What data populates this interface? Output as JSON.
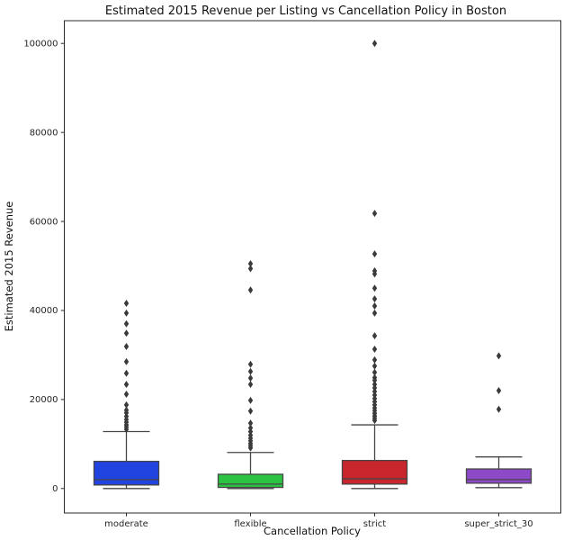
{
  "chart_data": {
    "type": "boxplot",
    "title": "Estimated 2015 Revenue per Listing vs Cancellation Policy in Boston",
    "xlabel": "Cancellation Policy",
    "ylabel": "Estimated 2015 Revenue",
    "categories": [
      "moderate",
      "flexible",
      "strict",
      "super_strict_30"
    ],
    "yticks": [
      0,
      20000,
      40000,
      60000,
      80000,
      100000
    ],
    "ylim": [
      -5500,
      105100
    ],
    "grid": false,
    "legend": "none",
    "style": {
      "edge_color": "#474747",
      "flier_color": "#3a3a3a",
      "spine_color": "#2b2b2b",
      "tick_label_color": "#262626"
    },
    "series": [
      {
        "name": "moderate",
        "color": "#2143e0",
        "whislo": 0,
        "q1": 800,
        "med": 2000,
        "q3": 6100,
        "whishi": 12800,
        "outliers": [
          13300,
          13800,
          14300,
          14900,
          15500,
          16200,
          17000,
          17600,
          18800,
          21200,
          23400,
          25900,
          28500,
          31900,
          34900,
          37000,
          39400,
          41600
        ]
      },
      {
        "name": "flexible",
        "color": "#2dc342",
        "whislo": 0,
        "q1": 250,
        "med": 1000,
        "q3": 3200,
        "whishi": 8100,
        "outliers": [
          9100,
          9600,
          10100,
          10700,
          11300,
          12000,
          12800,
          13600,
          14700,
          17400,
          19800,
          23400,
          24800,
          26300,
          27900,
          44600,
          49400,
          50500
        ]
      },
      {
        "name": "strict",
        "color": "#c8252c",
        "whislo": 0,
        "q1": 1000,
        "med": 2200,
        "q3": 6300,
        "whishi": 14300,
        "outliers": [
          15300,
          15800,
          16300,
          16900,
          17500,
          18100,
          18800,
          19500,
          20200,
          21000,
          21800,
          22600,
          23400,
          24300,
          24900,
          26100,
          27500,
          28900,
          31300,
          34300,
          39400,
          41000,
          42600,
          45000,
          48200,
          48900,
          52700,
          61800,
          100000
        ]
      },
      {
        "name": "super_strict_30",
        "color": "#8d49c7",
        "whislo": 200,
        "q1": 1200,
        "med": 2000,
        "q3": 4400,
        "whishi": 7100,
        "outliers": [
          17800,
          22000,
          29800
        ]
      }
    ]
  }
}
